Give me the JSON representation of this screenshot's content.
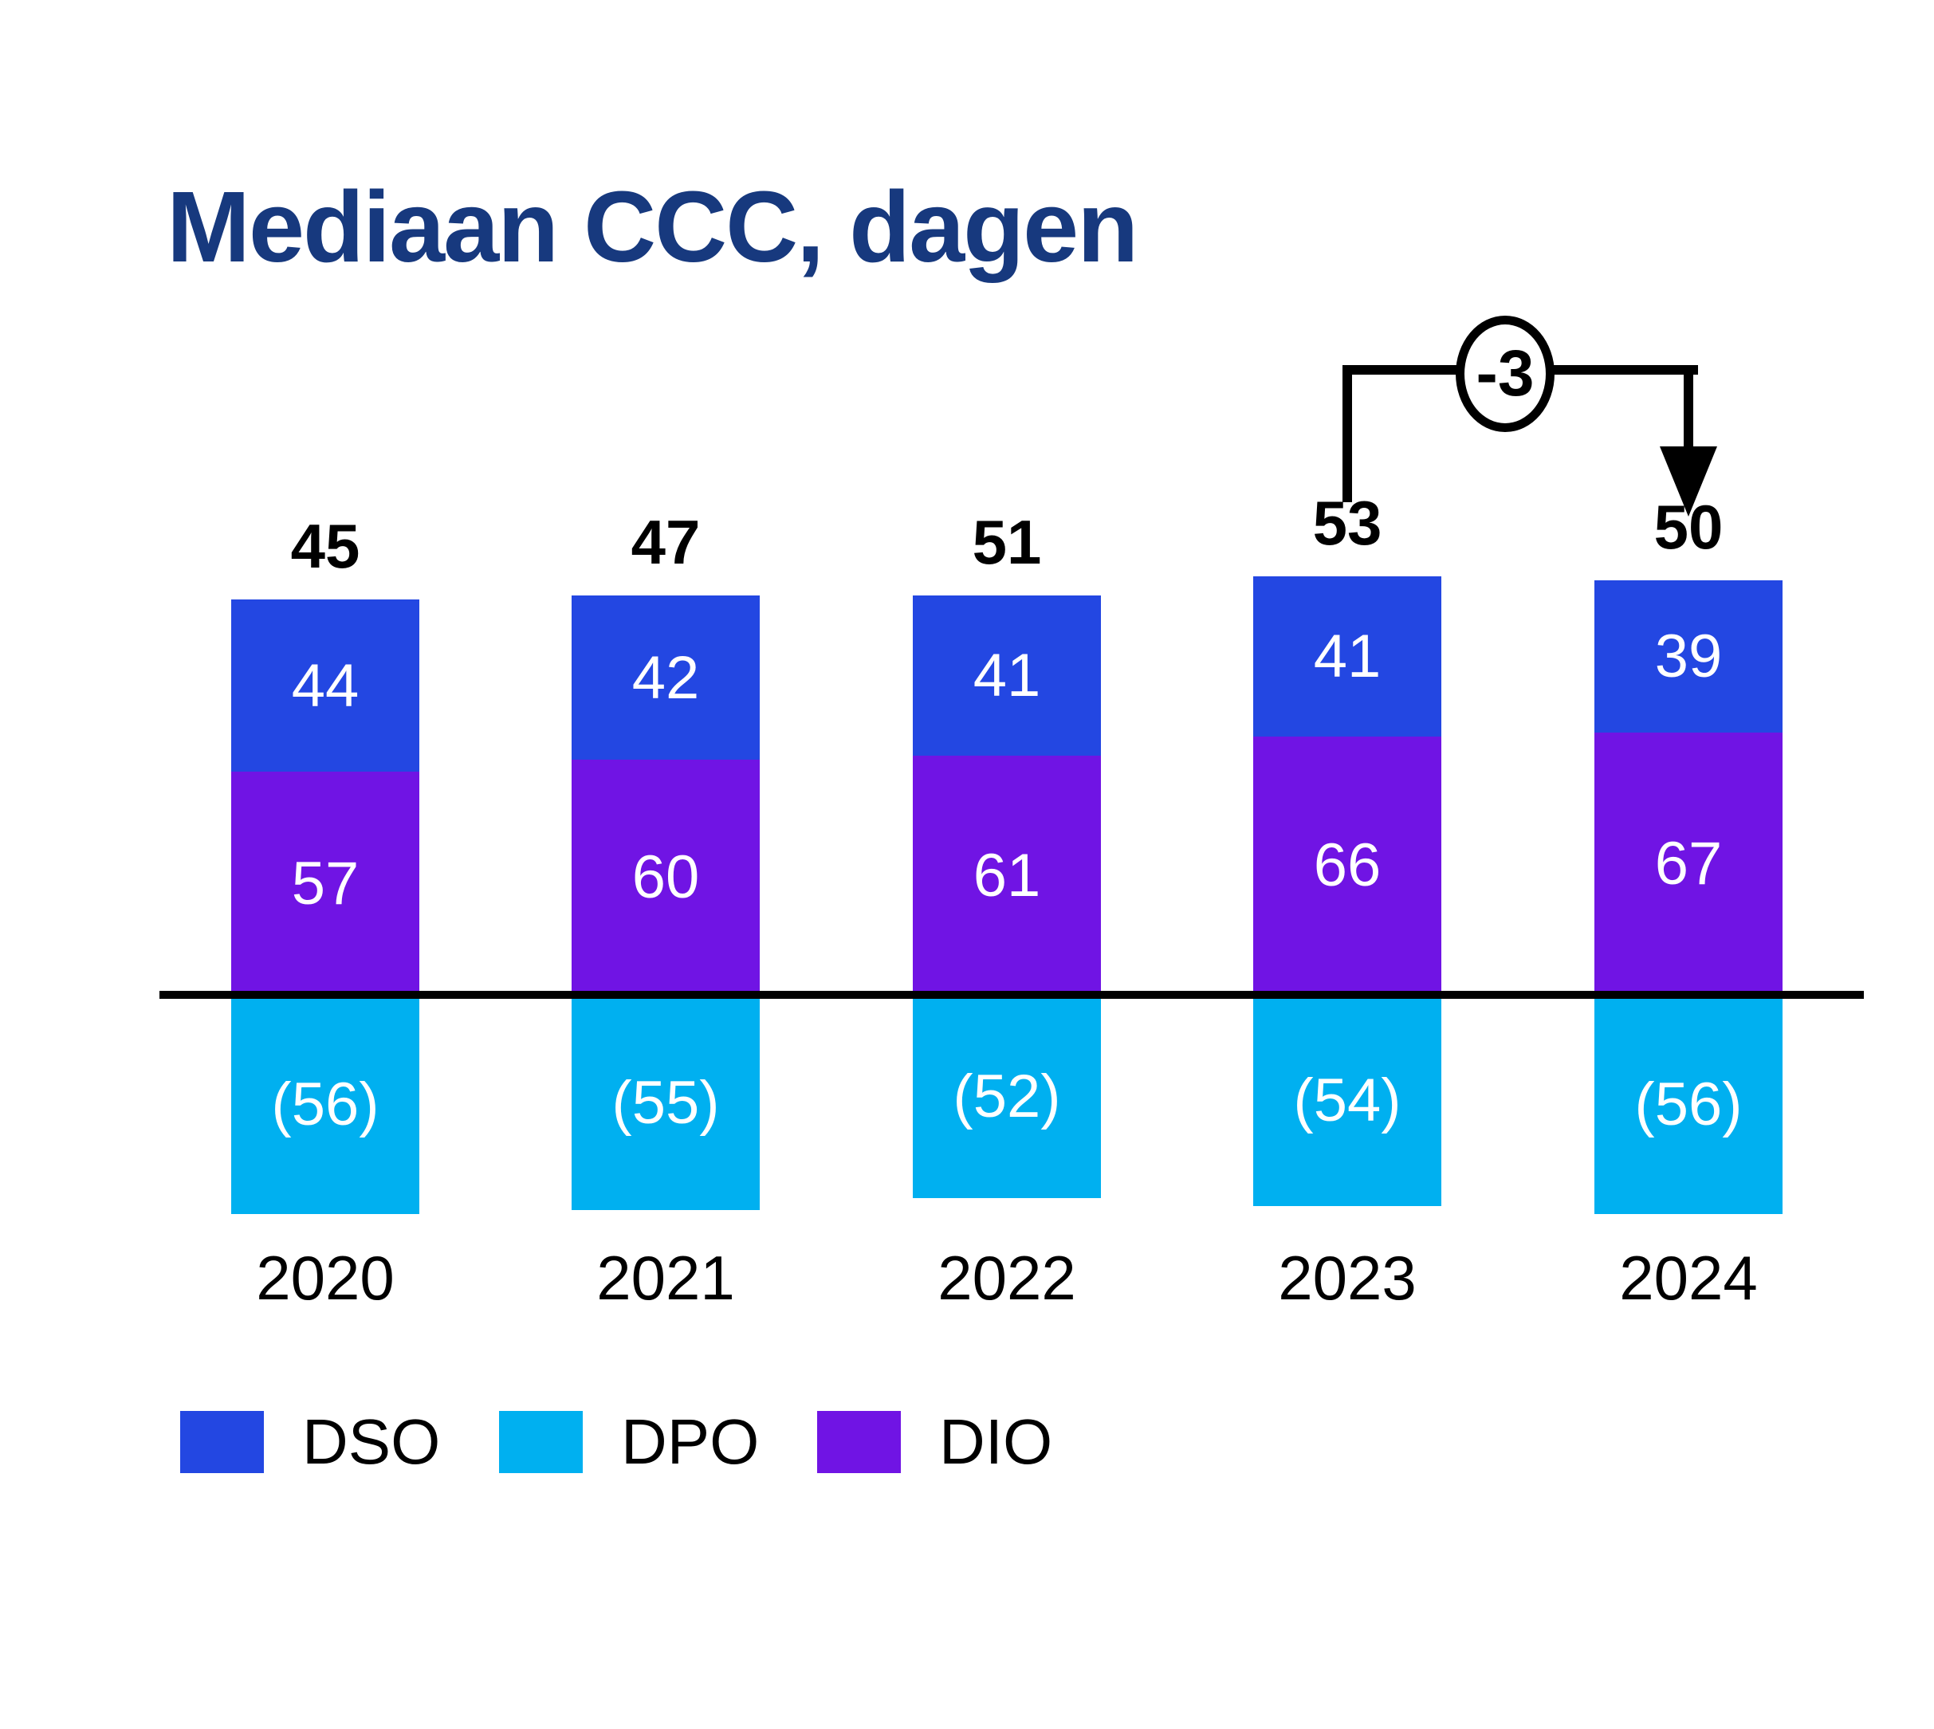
{
  "title": "Mediaan CCC, dagen",
  "colors": {
    "title": "#17397E",
    "axis": "#000000",
    "dso": "#2347E2",
    "dpo": "#00B0F0",
    "dio": "#7014E4",
    "bar_label": "#FFFFFF",
    "text": "#000000"
  },
  "chart_data": {
    "type": "bar",
    "stacked": true,
    "title": "Mediaan CCC, dagen",
    "categories": [
      "2020",
      "2021",
      "2022",
      "2023",
      "2024"
    ],
    "totals": [
      "45",
      "47",
      "51",
      "53",
      "50"
    ],
    "series": [
      {
        "name": "DSO",
        "placement": "above-axis-upper",
        "color": "#2347E2",
        "values": [
          44,
          42,
          41,
          41,
          39
        ],
        "labels": [
          "44",
          "42",
          "41",
          "41",
          "39"
        ]
      },
      {
        "name": "DIO",
        "placement": "above-axis-lower",
        "color": "#7014E4",
        "values": [
          57,
          60,
          61,
          66,
          67
        ],
        "labels": [
          "57",
          "60",
          "61",
          "66",
          "67"
        ]
      },
      {
        "name": "DPO",
        "placement": "below-axis",
        "color": "#00B0F0",
        "values": [
          56,
          55,
          52,
          54,
          56
        ],
        "labels": [
          "(56)",
          "(55)",
          "(52)",
          "(54)",
          "(56)"
        ]
      }
    ],
    "annotation": {
      "label": "-3",
      "from_category": "2023",
      "to_category": "2024"
    },
    "legend": [
      {
        "label": "DSO",
        "color": "#2347E2"
      },
      {
        "label": "DPO",
        "color": "#00B0F0"
      },
      {
        "label": "DIO",
        "color": "#7014E4"
      }
    ],
    "axis": {
      "baseline": "zero-line",
      "gridlines": false,
      "value_axis_visible": false
    }
  }
}
